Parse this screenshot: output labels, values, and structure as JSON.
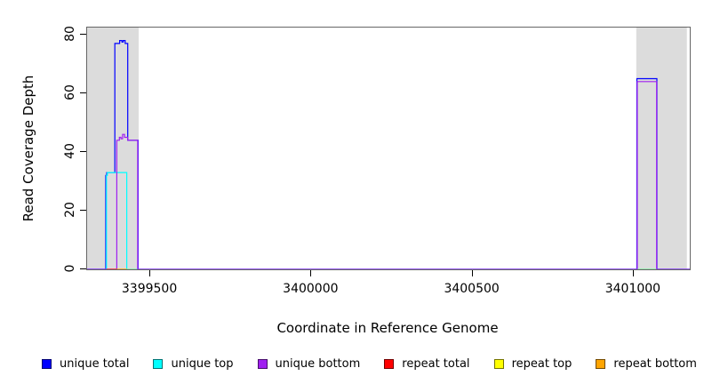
{
  "chart_data": {
    "type": "line",
    "title": "",
    "xlabel": "Coordinate in Reference Genome",
    "ylabel": "Read Coverage Depth",
    "xlim": [
      3399304,
      3401174
    ],
    "ylim": [
      0,
      82
    ],
    "grid": false,
    "x_ticks": [
      {
        "value": 3399500,
        "label": "3399500"
      },
      {
        "value": 3400000,
        "label": "3400000"
      },
      {
        "value": 3400500,
        "label": "3400500"
      },
      {
        "value": 3401000,
        "label": "3401000"
      }
    ],
    "y_ticks": [
      {
        "value": 0,
        "label": "0"
      },
      {
        "value": 20,
        "label": "20"
      },
      {
        "value": 40,
        "label": "40"
      },
      {
        "value": 60,
        "label": "60"
      },
      {
        "value": 80,
        "label": "80"
      }
    ],
    "shaded_regions": [
      {
        "name": "repeat-region-left",
        "start": 3399304,
        "end": 3399464,
        "color": "#DCDCDC"
      },
      {
        "name": "repeat-region-right",
        "start": 3401008,
        "end": 3401165,
        "color": "#DCDCDC"
      }
    ],
    "series": [
      {
        "name": "unique total",
        "color": "#0000FF",
        "points": [
          [
            3399304,
            0
          ],
          [
            3399362,
            0
          ],
          [
            3399362,
            32
          ],
          [
            3399365,
            32
          ],
          [
            3399365,
            33
          ],
          [
            3399390,
            33
          ],
          [
            3399390,
            77
          ],
          [
            3399405,
            77
          ],
          [
            3399405,
            78
          ],
          [
            3399412,
            78
          ],
          [
            3399412,
            77.5
          ],
          [
            3399416,
            77.5
          ],
          [
            3399416,
            78
          ],
          [
            3399422,
            78
          ],
          [
            3399422,
            77
          ],
          [
            3399430,
            77
          ],
          [
            3399430,
            44
          ],
          [
            3399462,
            44
          ],
          [
            3399462,
            0
          ],
          [
            3401010,
            0
          ],
          [
            3401010,
            65
          ],
          [
            3401072,
            65
          ],
          [
            3401072,
            0
          ],
          [
            3401174,
            0
          ]
        ]
      },
      {
        "name": "unique top",
        "color": "#00FFFF",
        "points": [
          [
            3399304,
            0
          ],
          [
            3399364,
            0
          ],
          [
            3399364,
            32
          ],
          [
            3399367,
            32
          ],
          [
            3399367,
            33
          ],
          [
            3399427,
            33
          ],
          [
            3399427,
            0
          ],
          [
            3401174,
            0
          ]
        ]
      },
      {
        "name": "unique bottom",
        "color": "#A020F0",
        "points": [
          [
            3399304,
            0
          ],
          [
            3399396,
            0
          ],
          [
            3399396,
            44
          ],
          [
            3399404,
            44
          ],
          [
            3399404,
            45
          ],
          [
            3399409,
            45
          ],
          [
            3399409,
            44.5
          ],
          [
            3399414,
            44.5
          ],
          [
            3399414,
            46
          ],
          [
            3399420,
            46
          ],
          [
            3399420,
            45
          ],
          [
            3399430,
            45
          ],
          [
            3399430,
            44
          ],
          [
            3399461,
            44
          ],
          [
            3399461,
            0
          ],
          [
            3401011,
            0
          ],
          [
            3401011,
            64
          ],
          [
            3401071,
            64
          ],
          [
            3401071,
            0
          ],
          [
            3401174,
            0
          ]
        ]
      },
      {
        "name": "repeat total",
        "color": "#FF0000",
        "points": [
          [
            3399365,
            0
          ],
          [
            3399396,
            0
          ]
        ]
      },
      {
        "name": "repeat top",
        "color": "#FFFF00",
        "points": []
      },
      {
        "name": "repeat bottom",
        "color": "#FFA500",
        "points": [
          [
            3399396,
            0
          ],
          [
            3399427,
            0
          ]
        ]
      }
    ],
    "baseline_segments": [
      {
        "x1": 3399365,
        "x2": 3399396,
        "color": "#FF3030"
      },
      {
        "x1": 3399396,
        "x2": 3399427,
        "color": "#FFA500"
      },
      {
        "x1": 3399427,
        "x2": 3399458,
        "color": "#90EE90"
      },
      {
        "x1": 3401013,
        "x2": 3401070,
        "color": "#90EE90"
      }
    ],
    "legend": [
      {
        "label": "unique total",
        "color": "#0000FF"
      },
      {
        "label": "unique top",
        "color": "#00FFFF"
      },
      {
        "label": "unique bottom",
        "color": "#A020F0"
      },
      {
        "label": "repeat total",
        "color": "#FF0000"
      },
      {
        "label": "repeat top",
        "color": "#FFFF00"
      },
      {
        "label": "repeat bottom",
        "color": "#FFA500"
      }
    ],
    "legend_position": "bottom"
  }
}
